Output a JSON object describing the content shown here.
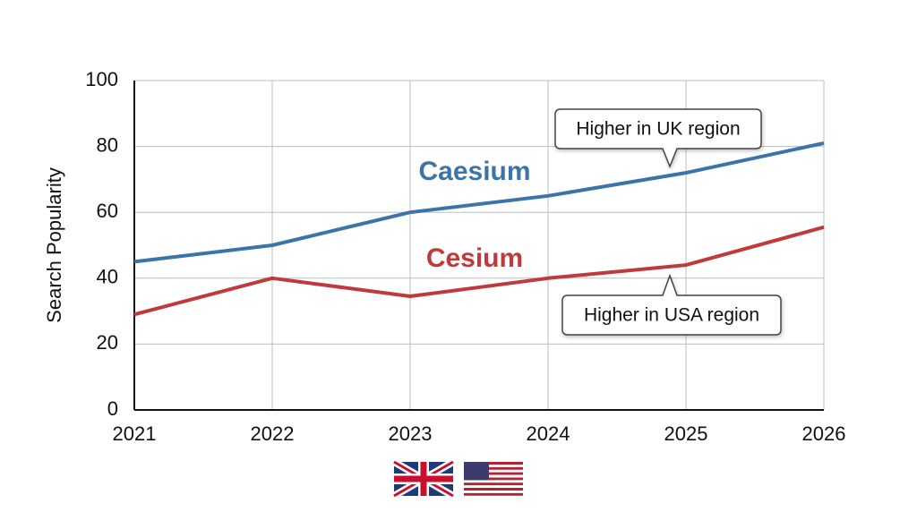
{
  "chart_data": {
    "type": "line",
    "y_label": "Search Popularity",
    "x": [
      2021,
      2022,
      2023,
      2024,
      2025,
      2026
    ],
    "xlim": [
      2021,
      2026
    ],
    "xticks": [
      2021,
      2022,
      2023,
      2024,
      2025,
      2026
    ],
    "ylim": [
      0,
      100
    ],
    "yticks": [
      0,
      20,
      40,
      60,
      80,
      100
    ],
    "grid": true,
    "series": [
      {
        "name": "Caesium",
        "color": "#3d74a8",
        "values": [
          45,
          50,
          60,
          65,
          72,
          81
        ]
      },
      {
        "name": "Cesium",
        "color": "#c0393b",
        "values": [
          29,
          40,
          34.5,
          40,
          44,
          55.5
        ]
      }
    ],
    "annotations": [
      "Higher in UK region",
      "Higher in USA region"
    ]
  }
}
